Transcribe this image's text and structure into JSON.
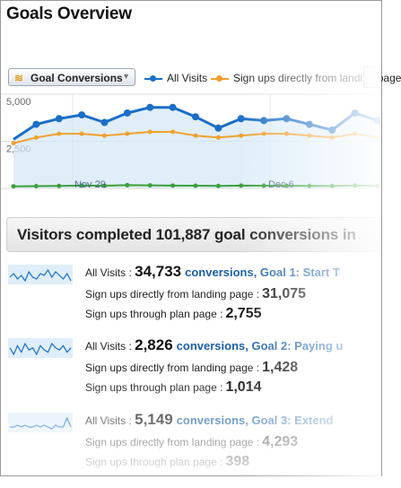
{
  "title": "Goals Overview",
  "toolbar": {
    "metric_label": "Goal Conversions",
    "legend": [
      {
        "label": "All Visits",
        "color": "#1a6ec7"
      },
      {
        "label": "Sign ups directly from landing page",
        "color": "#f0a030"
      }
    ]
  },
  "chart_data": {
    "type": "line",
    "x_labels": [
      "Nov 29",
      "Dec 6"
    ],
    "y_ticks": [
      "5,000",
      "2,500"
    ],
    "ylim": [
      0,
      5000
    ],
    "grid": true,
    "series": [
      {
        "name": "All Visits",
        "color": "#1a6ec7",
        "values": [
          2600,
          3400,
          3700,
          3900,
          3500,
          4000,
          4300,
          4300,
          3800,
          3200,
          3700,
          3600,
          3700,
          3400,
          3100,
          4000,
          3600
        ]
      },
      {
        "name": "Sign ups directly from landing page",
        "color": "#f0a030",
        "values": [
          2400,
          2700,
          2900,
          2900,
          2800,
          2900,
          3000,
          3000,
          2800,
          2700,
          2800,
          2900,
          2900,
          2800,
          2700,
          2900,
          2700
        ]
      },
      {
        "name": "",
        "color": "#3ca03c",
        "values": [
          110,
          120,
          130,
          150,
          140,
          170,
          160,
          150,
          140,
          130,
          150,
          140,
          140,
          130,
          130,
          150,
          140
        ]
      }
    ]
  },
  "summary": {
    "text": "Visitors completed 101,887 goal conversions in"
  },
  "goals": [
    {
      "label": "All Visits : ",
      "value": "34,733",
      "conv_text": "conversions, Goal 1: Start T",
      "subs": [
        {
          "label": "Sign ups directly from landing page :",
          "value": "31,075"
        },
        {
          "label": "Sign ups through plan page :",
          "value": "2,755"
        }
      ],
      "spark": [
        8,
        10,
        7,
        9,
        6,
        11,
        8,
        7,
        10,
        9,
        12,
        8,
        11,
        9,
        7,
        10,
        6
      ]
    },
    {
      "label": "All Visits : ",
      "value": "2,826",
      "conv_text": "conversions, Goal 2: Paying u",
      "subs": [
        {
          "label": "Sign ups directly from landing page :",
          "value": "1,428"
        },
        {
          "label": "Sign ups through plan page :",
          "value": "1,014"
        }
      ],
      "spark": [
        10,
        7,
        11,
        8,
        12,
        9,
        10,
        7,
        11,
        9,
        8,
        12,
        10,
        9,
        11,
        8,
        10
      ]
    },
    {
      "label": "All Visits : ",
      "value": "5,149",
      "conv_text": "conversions, Goal 3: Extend",
      "subs": [
        {
          "label": "Sign ups directly from landing page :",
          "value": "4,293"
        },
        {
          "label": "Sign ups through plan page :",
          "value": "398"
        }
      ],
      "spark": [
        9,
        9,
        10,
        9,
        10,
        9,
        9,
        10,
        9,
        10,
        9,
        8,
        10,
        9,
        9,
        14,
        9
      ]
    }
  ]
}
